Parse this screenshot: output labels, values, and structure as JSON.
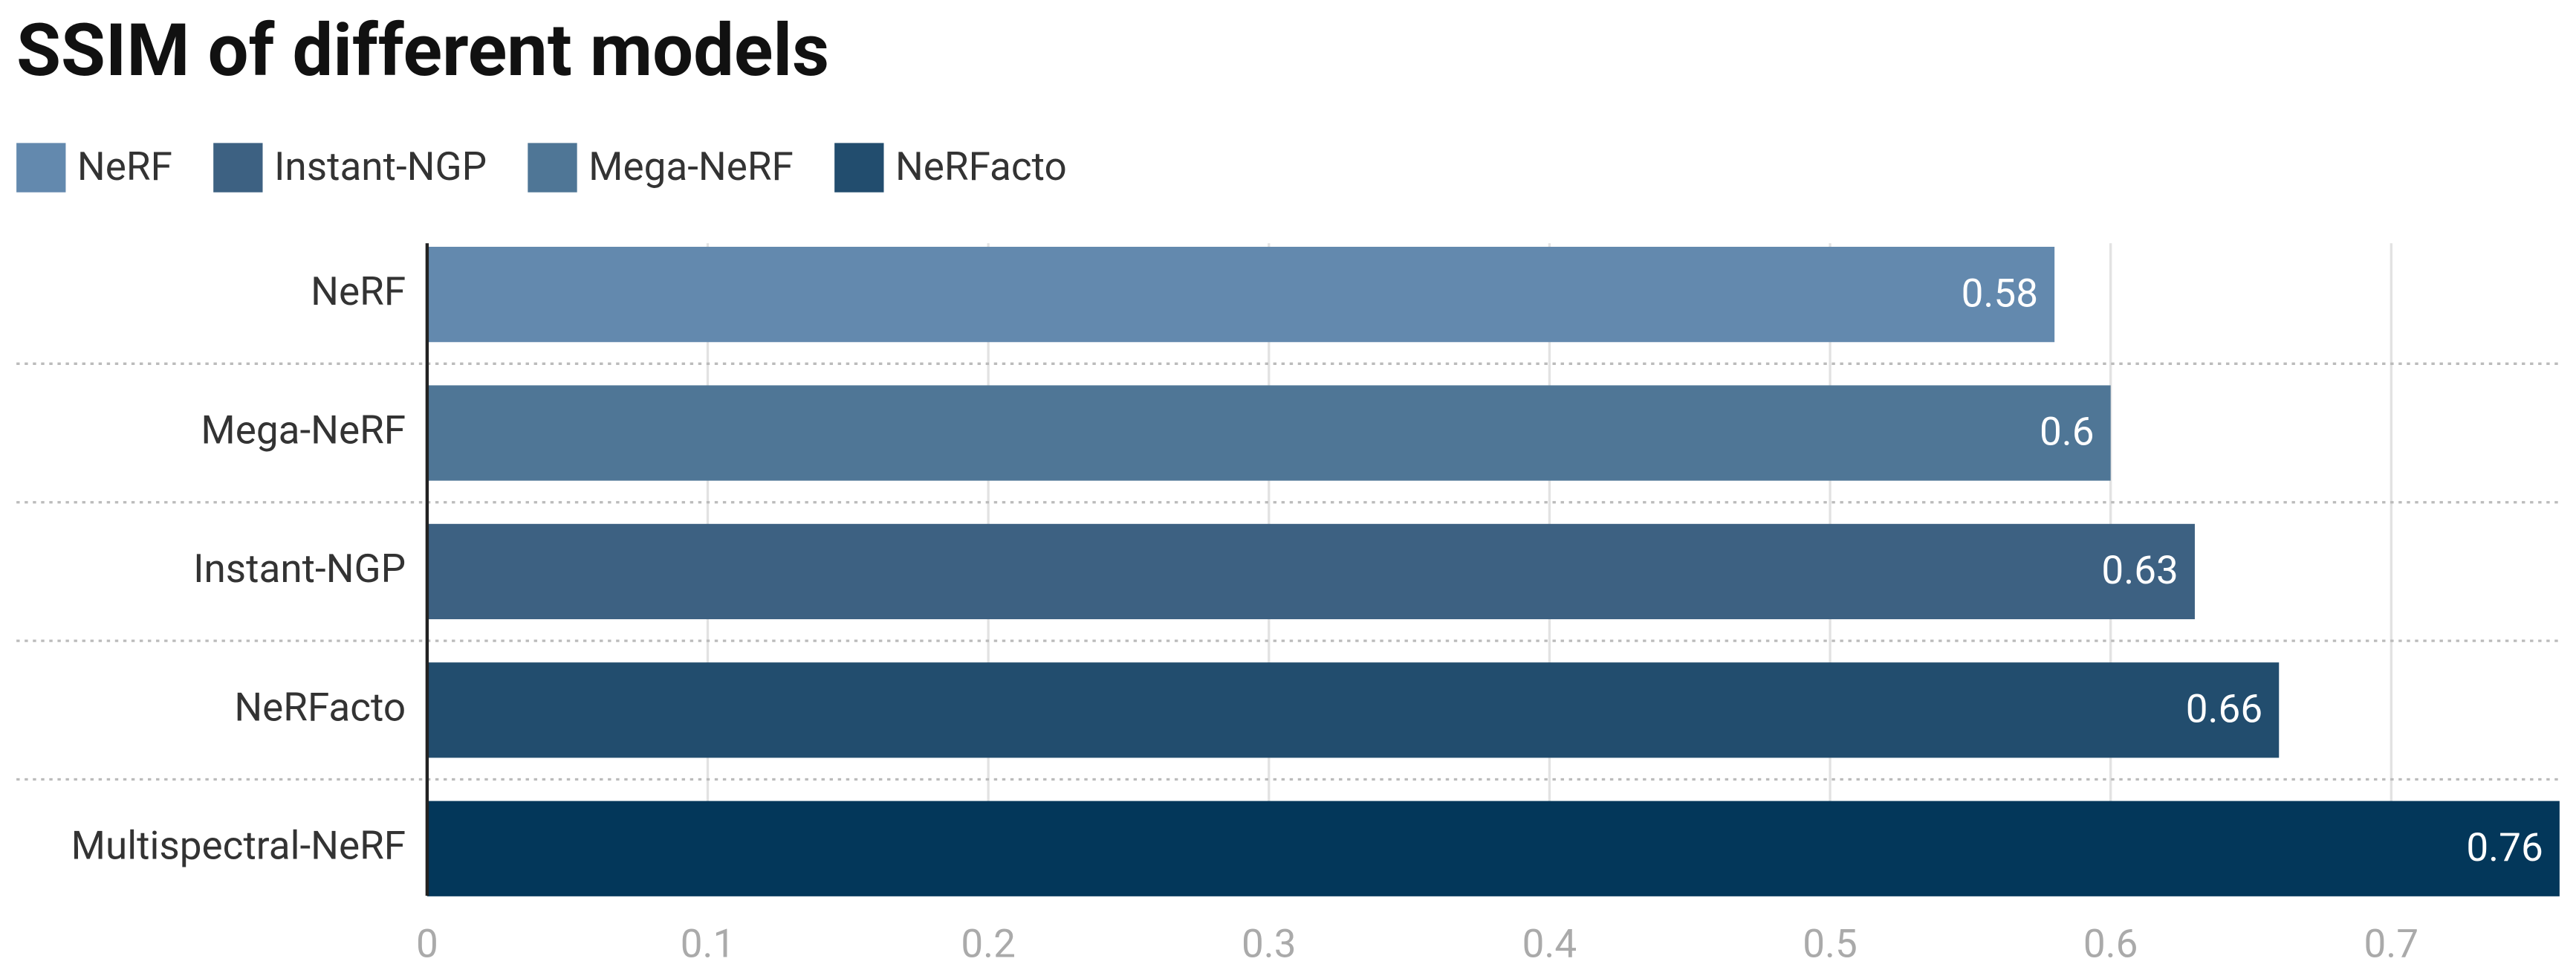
{
  "chart_data": {
    "type": "bar",
    "orientation": "horizontal",
    "title": "SSIM of different models",
    "legend": [
      {
        "name": "NeRF",
        "color": "#6389ae"
      },
      {
        "name": "Instant-NGP",
        "color": "#3d6182"
      },
      {
        "name": "Mega-NeRF",
        "color": "#4f7696"
      },
      {
        "name": "NeRFacto",
        "color": "#224d6e"
      }
    ],
    "categories": [
      "NeRF",
      "Mega-NeRF",
      "Instant-NGP",
      "NeRFacto",
      "Multispectral-NeRF"
    ],
    "values": [
      0.58,
      0.6,
      0.63,
      0.66,
      0.76
    ],
    "colors": [
      "#6389ae",
      "#4f7696",
      "#3d6182",
      "#224d6e",
      "#03375a"
    ],
    "xlim": [
      0,
      0.76
    ],
    "xticks": [
      0,
      0.1,
      0.2,
      0.3,
      0.4,
      0.5,
      0.6,
      0.7
    ],
    "grid": true
  }
}
